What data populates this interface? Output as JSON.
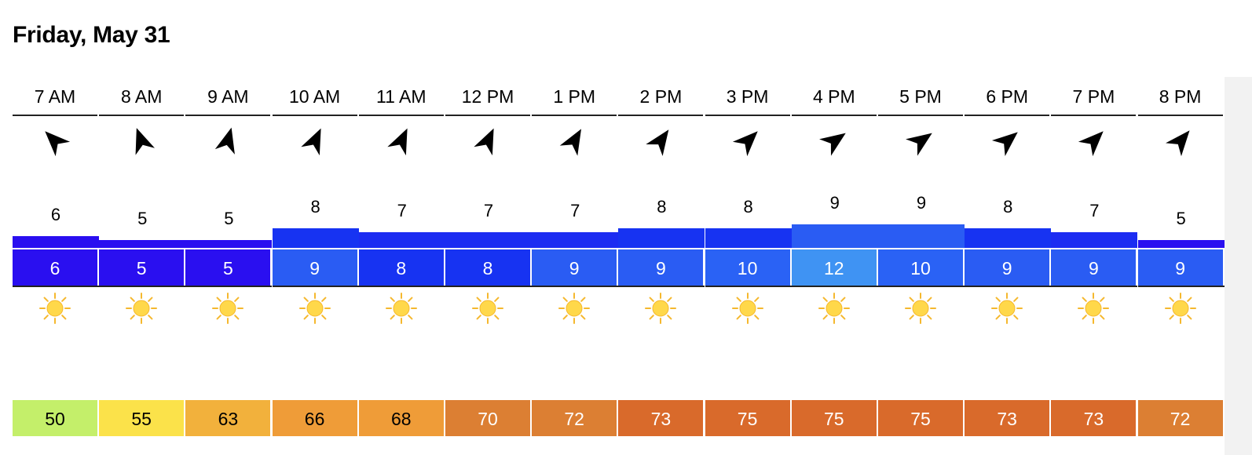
{
  "title": "Friday, May 31",
  "colors": {
    "text": "#000000",
    "gust_text": "#ffffff",
    "sun_fill": "#ffd84a",
    "sun_ray": "#f5b82e"
  },
  "hours": [
    {
      "time": "7 AM",
      "wind_dir_deg": 315,
      "wind": 6,
      "gust": 6,
      "temp": 50,
      "condition": "sun-icon",
      "wind_color": "#2a0ff0",
      "gust_color": "#2a0ff0",
      "temp_color": "#c4ef6a",
      "temp_text": "#000000"
    },
    {
      "time": "8 AM",
      "wind_dir_deg": 340,
      "wind": 5,
      "gust": 5,
      "temp": 55,
      "condition": "sun-icon",
      "wind_color": "#2a0ff0",
      "gust_color": "#2a0ff0",
      "temp_color": "#fbe24a",
      "temp_text": "#000000"
    },
    {
      "time": "9 AM",
      "wind_dir_deg": 15,
      "wind": 5,
      "gust": 5,
      "temp": 63,
      "condition": "sun-icon",
      "wind_color": "#2a0ff0",
      "gust_color": "#2a0ff0",
      "temp_color": "#f2b13c",
      "temp_text": "#000000"
    },
    {
      "time": "10 AM",
      "wind_dir_deg": 25,
      "wind": 8,
      "gust": 9,
      "temp": 66,
      "condition": "sun-icon",
      "wind_color": "#1733f2",
      "gust_color": "#2a5cf3",
      "temp_color": "#ef9c38",
      "temp_text": "#000000"
    },
    {
      "time": "11 AM",
      "wind_dir_deg": 25,
      "wind": 7,
      "gust": 8,
      "temp": 68,
      "condition": "sun-icon",
      "wind_color": "#1c2cf2",
      "gust_color": "#1733f2",
      "temp_color": "#ef9c38",
      "temp_text": "#000000"
    },
    {
      "time": "12 PM",
      "wind_dir_deg": 25,
      "wind": 7,
      "gust": 8,
      "temp": 70,
      "condition": "sun-icon",
      "wind_color": "#1c2cf2",
      "gust_color": "#1733f2",
      "temp_color": "#dc7f33",
      "temp_text": "#ffffff"
    },
    {
      "time": "1 PM",
      "wind_dir_deg": 30,
      "wind": 7,
      "gust": 9,
      "temp": 72,
      "condition": "sun-icon",
      "wind_color": "#1c2cf2",
      "gust_color": "#2a5cf3",
      "temp_color": "#dc7f33",
      "temp_text": "#ffffff"
    },
    {
      "time": "2 PM",
      "wind_dir_deg": 35,
      "wind": 8,
      "gust": 9,
      "temp": 73,
      "condition": "sun-icon",
      "wind_color": "#1733f2",
      "gust_color": "#2a5cf3",
      "temp_color": "#d96a2b",
      "temp_text": "#ffffff"
    },
    {
      "time": "3 PM",
      "wind_dir_deg": 45,
      "wind": 8,
      "gust": 10,
      "temp": 75,
      "condition": "sun-icon",
      "wind_color": "#1733f2",
      "gust_color": "#2a62f5",
      "temp_color": "#d96a2b",
      "temp_text": "#ffffff"
    },
    {
      "time": "4 PM",
      "wind_dir_deg": 55,
      "wind": 9,
      "gust": 12,
      "temp": 75,
      "condition": "sun-icon",
      "wind_color": "#2a5cf3",
      "gust_color": "#3f93f3",
      "temp_color": "#d96a2b",
      "temp_text": "#ffffff"
    },
    {
      "time": "5 PM",
      "wind_dir_deg": 55,
      "wind": 9,
      "gust": 10,
      "temp": 75,
      "condition": "sun-icon",
      "wind_color": "#2a5cf3",
      "gust_color": "#2a62f5",
      "temp_color": "#d96a2b",
      "temp_text": "#ffffff"
    },
    {
      "time": "6 PM",
      "wind_dir_deg": 50,
      "wind": 8,
      "gust": 9,
      "temp": 73,
      "condition": "sun-icon",
      "wind_color": "#1733f2",
      "gust_color": "#2a5cf3",
      "temp_color": "#d96a2b",
      "temp_text": "#ffffff"
    },
    {
      "time": "7 PM",
      "wind_dir_deg": 45,
      "wind": 7,
      "gust": 9,
      "temp": 73,
      "condition": "sun-icon",
      "wind_color": "#1c2cf2",
      "gust_color": "#2a5cf3",
      "temp_color": "#d96a2b",
      "temp_text": "#ffffff"
    },
    {
      "time": "8 PM",
      "wind_dir_deg": 40,
      "wind": 5,
      "gust": 9,
      "temp": 72,
      "condition": "sun-icon",
      "wind_color": "#2a0ff0",
      "gust_color": "#2a5cf3",
      "temp_color": "#dc7f33",
      "temp_text": "#ffffff"
    }
  ]
}
